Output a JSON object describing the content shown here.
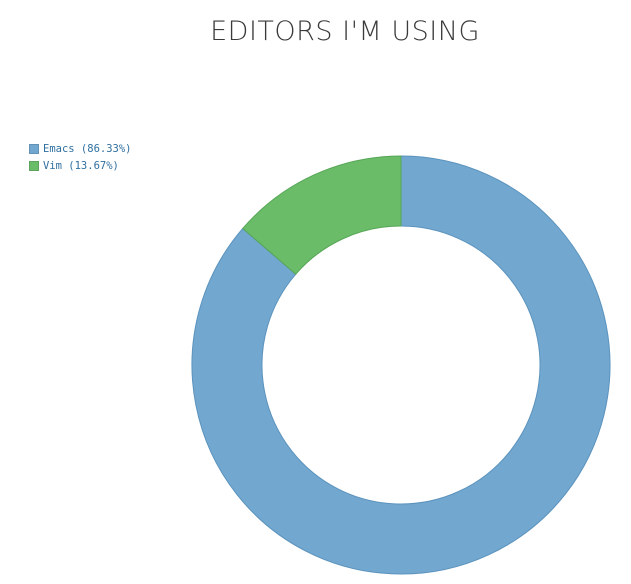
{
  "chart_data": {
    "type": "pie",
    "title": "EDITORS I'M USING",
    "donut": true,
    "legend_position": "top-left",
    "categories": [
      "Emacs",
      "Vim"
    ],
    "values": [
      86.33,
      13.67
    ],
    "legend_labels": [
      "Emacs (86.33%)",
      "Vim (13.67%)"
    ],
    "colors": [
      "#72a7cf",
      "#6abc69"
    ],
    "stroke_colors": [
      "#5b93bd",
      "#56a656"
    ]
  }
}
